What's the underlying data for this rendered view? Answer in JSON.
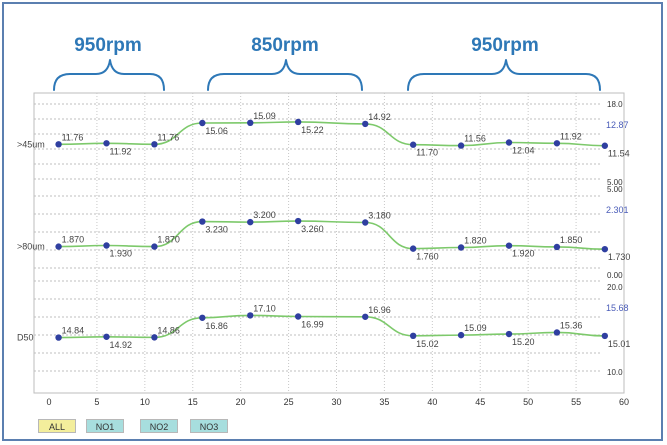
{
  "headers": [
    "950rpm",
    "850rpm",
    "950rpm"
  ],
  "buttons": [
    {
      "label": "ALL",
      "color": "#f3ee9c"
    },
    {
      "label": "NO1",
      "color": "#a7dede"
    },
    {
      "label": "NO2",
      "color": "#a7dede"
    },
    {
      "label": "NO3",
      "color": "#a7dede"
    }
  ],
  "colors": {
    "line": "#7dc96b",
    "point": "#2f3fa0",
    "header": "#2e78b7",
    "last_value": "#4a5cb8"
  },
  "chart_data": {
    "type": "line",
    "x": [
      1,
      6,
      11,
      16,
      21,
      26,
      33,
      38,
      43,
      48,
      53,
      58
    ],
    "x_ticks": [
      "0",
      "5",
      "10",
      "15",
      "20",
      "25",
      "30",
      "35",
      "40",
      "45",
      "50",
      "55",
      "60"
    ],
    "xlim": [
      0,
      60
    ],
    "grid": true,
    "series": [
      {
        "name": ">45um",
        "values": [
          11.76,
          11.92,
          11.76,
          15.06,
          15.09,
          15.22,
          14.92,
          11.7,
          11.56,
          12.04,
          11.92,
          11.54
        ],
        "labels": [
          "11.76",
          "11.92",
          "11.76",
          "15.06",
          "15.09",
          "15.22",
          "14.92",
          "11.70",
          "11.56",
          "12.04",
          "11.92",
          "11.54"
        ],
        "ylim": [
          5.0,
          18.0
        ],
        "right_ticks": [
          "18.0",
          "5.00"
        ],
        "last_value": "12.87"
      },
      {
        "name": ">80um",
        "values": [
          1.87,
          1.93,
          1.87,
          3.23,
          3.2,
          3.26,
          3.18,
          1.76,
          1.82,
          1.92,
          1.85,
          1.73
        ],
        "labels": [
          "1.870",
          "1.930",
          "1.870",
          "3.230",
          "3.200",
          "3.260",
          "3.180",
          "1.760",
          "1.820",
          "1.920",
          "1.850",
          "1.730"
        ],
        "ylim": [
          0.0,
          5.0
        ],
        "right_ticks": [
          "5.00",
          "0.00"
        ],
        "last_value": "2.301"
      },
      {
        "name": "D50",
        "values": [
          14.84,
          14.92,
          14.86,
          16.86,
          17.1,
          16.99,
          16.96,
          15.02,
          15.09,
          15.2,
          15.36,
          15.01
        ],
        "labels": [
          "14.84",
          "14.92",
          "14.86",
          "16.86",
          "17.10",
          "16.99",
          "16.96",
          "15.02",
          "15.09",
          "15.20",
          "15.36",
          "15.01"
        ],
        "ylim": [
          10.0,
          20.0
        ],
        "right_ticks": [
          "20.0",
          "10.0"
        ],
        "last_value": "15.68"
      }
    ]
  }
}
